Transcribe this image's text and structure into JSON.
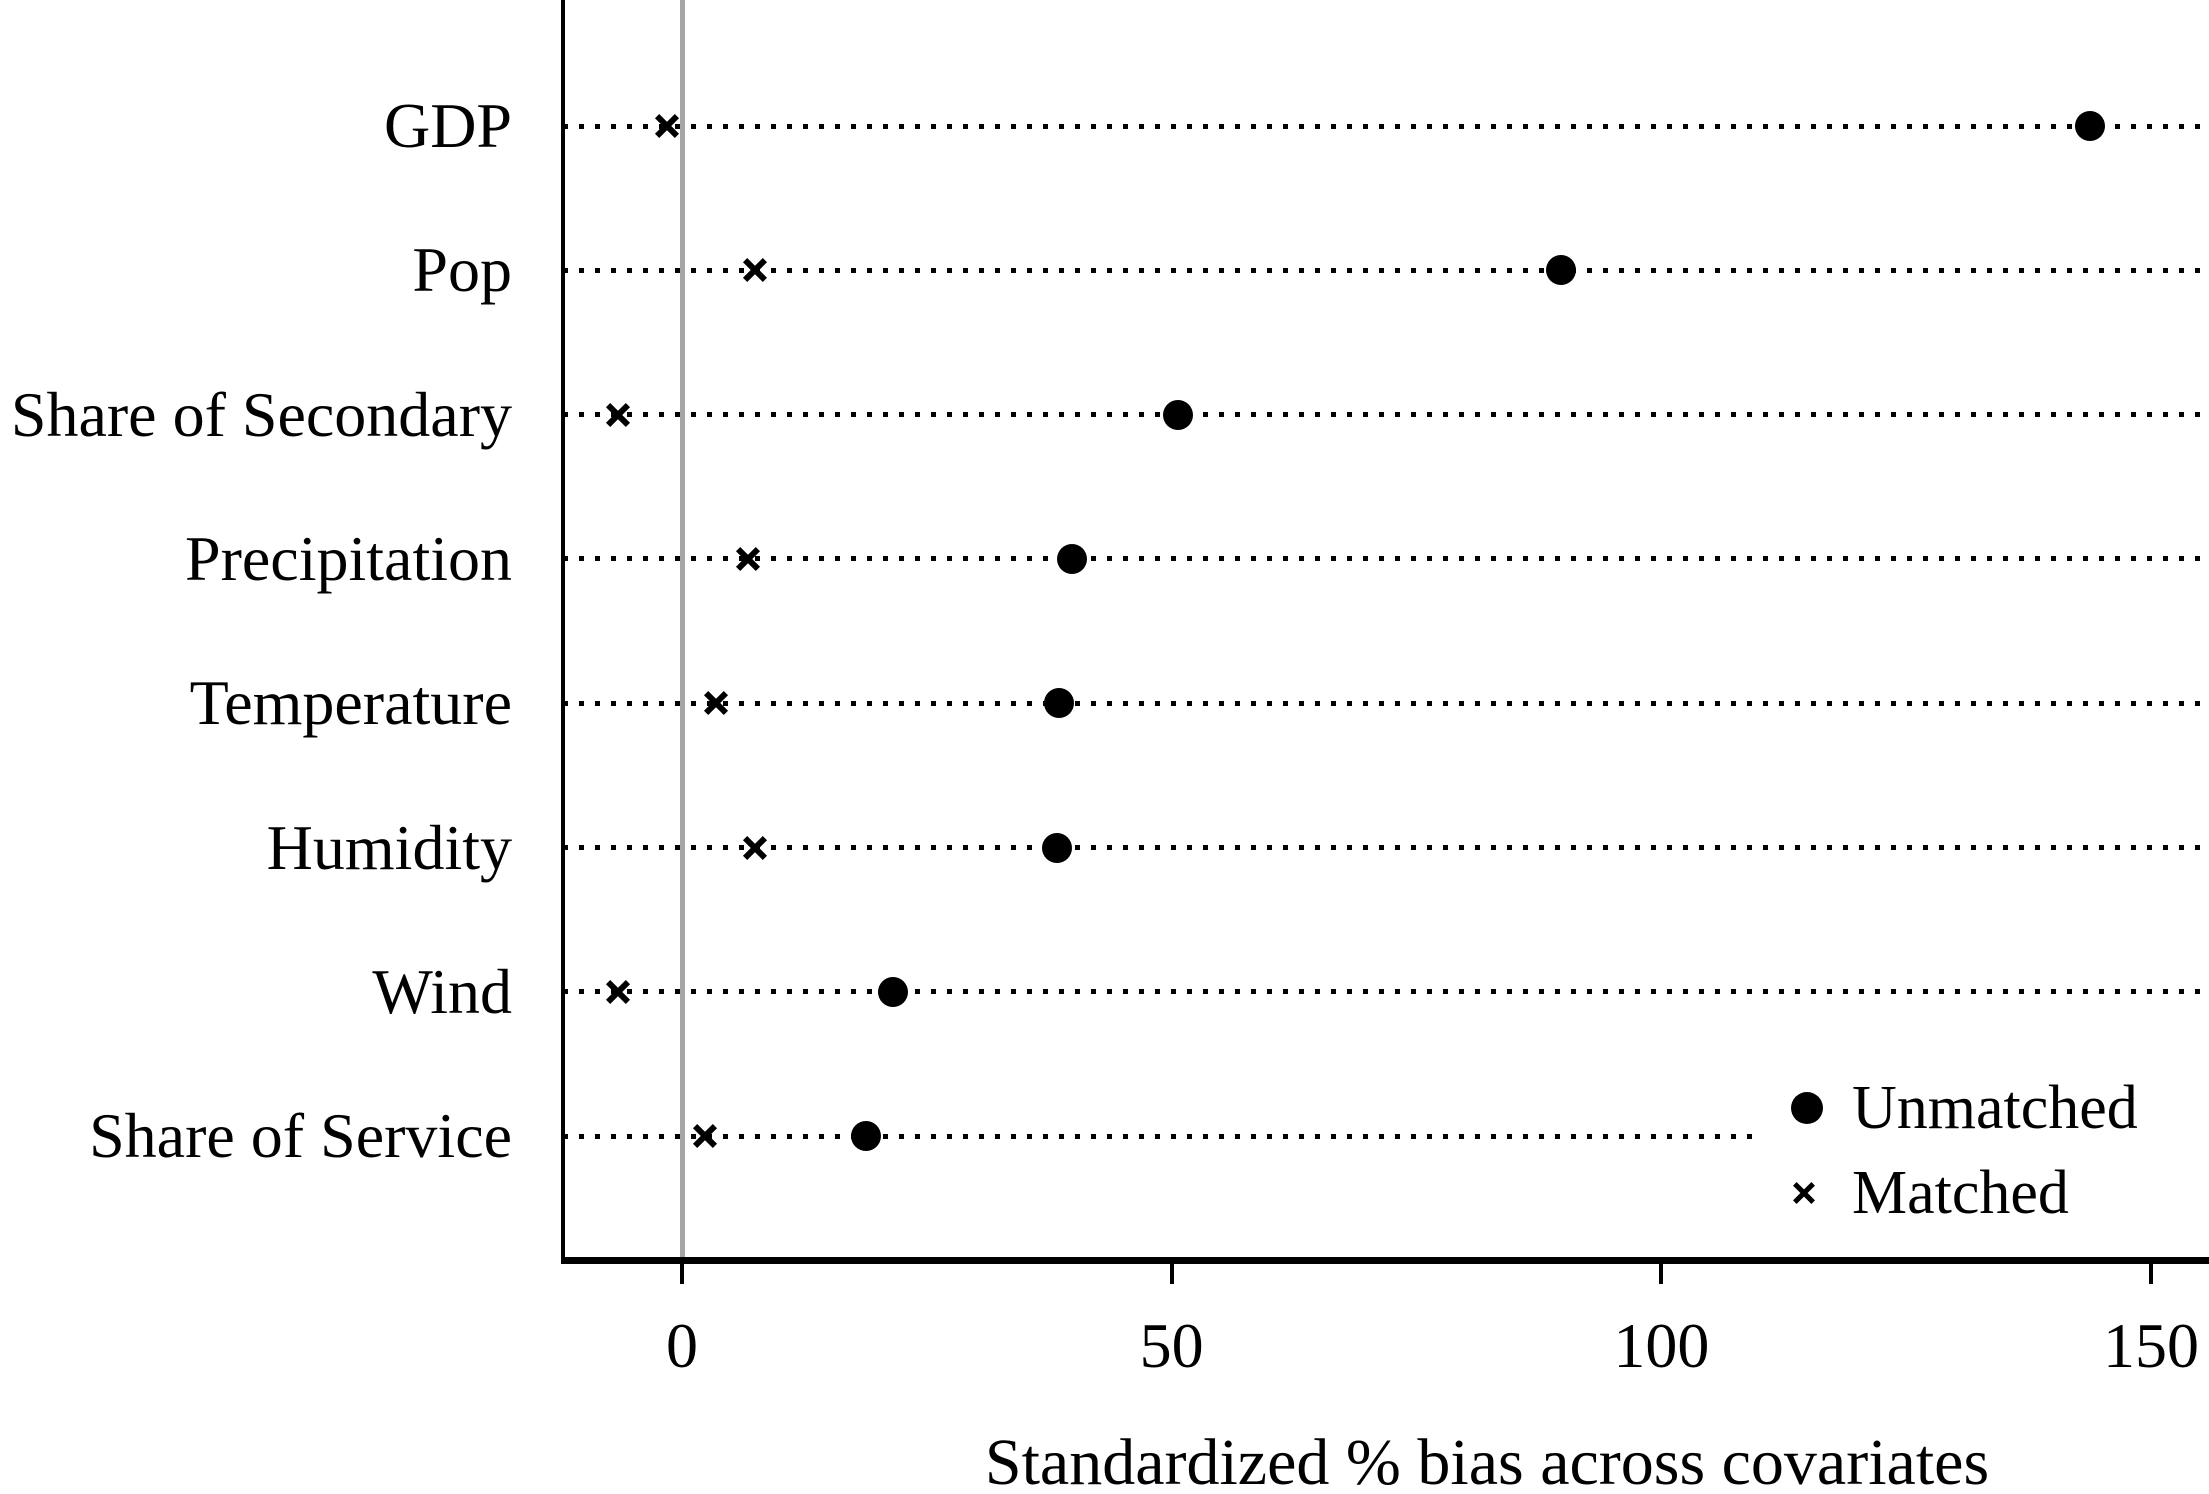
{
  "figure": {
    "background_color": "#ffffff",
    "axis_color": "#000000",
    "zero_line_color": "#a6a6a6",
    "marker_color": "#000000"
  },
  "chart_data": {
    "type": "scatter",
    "variant": "horizontal-dot-plot-covariate-balance",
    "xlabel": "Standardized % bias across covariates",
    "categories": [
      "GDP",
      "Pop",
      "Share of Secondary",
      "Precipitation",
      "Temperature",
      "Humidity",
      "Wind",
      "Share of Service"
    ],
    "series": [
      {
        "name": "Unmatched",
        "marker": "filled-circle",
        "values": [
          143.8,
          89.8,
          50.6,
          39.8,
          38.5,
          38.3,
          21.5,
          18.8
        ]
      },
      {
        "name": "Matched",
        "marker": "x",
        "values": [
          -1.5,
          7.5,
          -6.5,
          6.7,
          3.5,
          7.5,
          -6.5,
          2.3
        ]
      }
    ],
    "x_ticks": [
      {
        "value": 0,
        "label": "0"
      },
      {
        "value": 50,
        "label": "50"
      },
      {
        "value": 100,
        "label": "100"
      },
      {
        "value": 150,
        "label": "150"
      }
    ],
    "xlim": [
      -12.4,
      155.9
    ],
    "zero_reference_line": 0,
    "gridlines": "dotted-horizontal-per-category",
    "legend_position": "bottom-right-inside-plot"
  },
  "legend": {
    "unmatched_label": "Unmatched",
    "matched_label": "Matched"
  },
  "axis": {
    "xlabel": "Standardized % bias across covariates"
  }
}
